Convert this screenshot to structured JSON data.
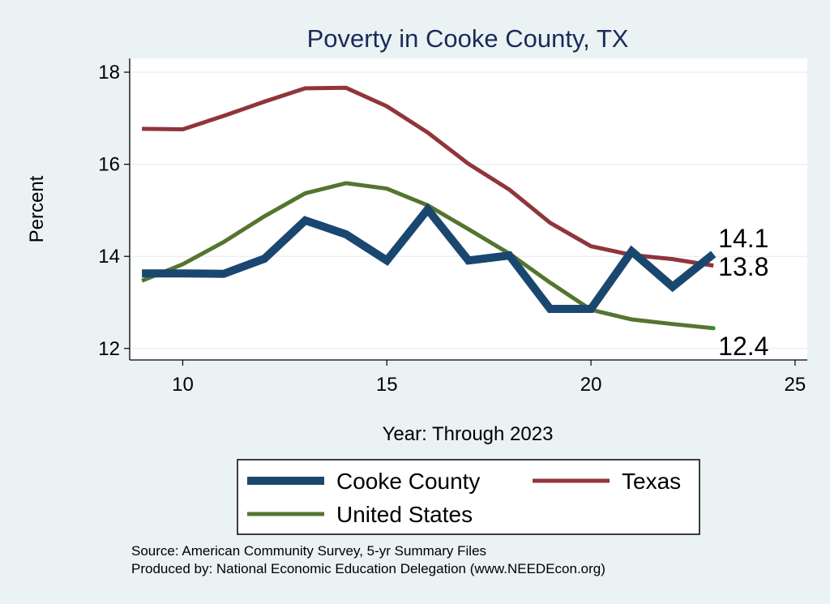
{
  "chart_data": {
    "type": "line",
    "title": "Poverty in Cooke County, TX",
    "xlabel": "Year: Through 2023",
    "ylabel": "Percent",
    "xlim": [
      8.7,
      25.3
    ],
    "ylim": [
      11.75,
      18.3
    ],
    "xticks": [
      10,
      15,
      20,
      25
    ],
    "yticks": [
      12,
      14,
      16,
      18
    ],
    "grid": true,
    "legend_position": "bottom",
    "series": [
      {
        "name": "Cooke County",
        "color": "#1a476f",
        "x": [
          9,
          10,
          11,
          12,
          13,
          14,
          15,
          16,
          17,
          18,
          19,
          20,
          21,
          22,
          23
        ],
        "values": [
          13.63,
          13.63,
          13.62,
          13.95,
          14.78,
          14.48,
          13.91,
          15.02,
          13.91,
          14.02,
          12.86,
          12.86,
          14.11,
          13.34,
          14.05
        ],
        "end_label": "14.1"
      },
      {
        "name": "Texas",
        "color": "#90353b",
        "x": [
          9,
          10,
          11,
          12,
          13,
          14,
          15,
          16,
          17,
          18,
          19,
          20,
          21,
          22,
          23
        ],
        "values": [
          16.77,
          16.76,
          17.05,
          17.36,
          17.65,
          17.66,
          17.26,
          16.69,
          16.01,
          15.45,
          14.73,
          14.22,
          14.03,
          13.94,
          13.8
        ],
        "end_label": "13.8"
      },
      {
        "name": "United States",
        "color": "#55752f",
        "x": [
          9,
          10,
          11,
          12,
          13,
          14,
          15,
          16,
          17,
          18,
          19,
          20,
          21,
          22,
          23
        ],
        "values": [
          13.47,
          13.83,
          14.31,
          14.87,
          15.37,
          15.59,
          15.47,
          15.11,
          14.59,
          14.06,
          13.43,
          12.84,
          12.63,
          12.53,
          12.44
        ],
        "end_label": "12.4"
      }
    ]
  },
  "source": {
    "line1": "Source: American Community Survey, 5-yr Summary Files",
    "line2": "Produced by: National Economic Education Delegation (www.NEEDEcon.org)"
  }
}
